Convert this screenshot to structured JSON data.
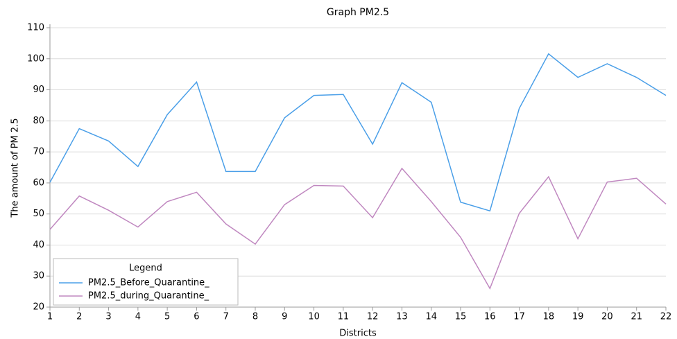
{
  "chart_data": {
    "type": "line",
    "title": "Graph PM2.5",
    "x_label": "Districts",
    "y_label": "The amount of PM 2.5",
    "x": [
      1,
      2,
      3,
      4,
      5,
      6,
      7,
      8,
      9,
      10,
      11,
      12,
      13,
      14,
      15,
      16,
      17,
      18,
      19,
      20,
      21,
      22
    ],
    "xlim": [
      1,
      22
    ],
    "xticks": [
      1,
      2,
      3,
      4,
      5,
      6,
      7,
      8,
      9,
      10,
      11,
      12,
      13,
      14,
      15,
      16,
      17,
      18,
      19,
      20,
      21,
      22
    ],
    "ylim": [
      20,
      110
    ],
    "yticks": [
      20,
      30,
      40,
      50,
      60,
      70,
      80,
      90,
      100,
      110
    ],
    "grid": true,
    "legend": {
      "title": "Legend",
      "position": "lower left"
    },
    "series": [
      {
        "name": "PM2.5_Before_Quarantine_",
        "color": "#4a9fe8",
        "values": [
          60.2,
          77.5,
          73.5,
          65.3,
          82,
          92.5,
          63.7,
          63.7,
          81,
          88.2,
          88.5,
          72.5,
          92.3,
          86,
          53.8,
          51,
          84,
          101.6,
          94,
          98.4,
          94,
          88.2
        ]
      },
      {
        "name": "PM2.5_during_Quarantine_",
        "color": "#c088c0",
        "values": [
          45,
          55.8,
          51.2,
          45.8,
          54,
          57,
          46.8,
          40.3,
          53,
          59.2,
          59,
          48.8,
          64.7,
          54,
          42.5,
          26,
          50.2,
          62,
          42,
          60.3,
          61.5,
          53.2
        ]
      }
    ]
  }
}
